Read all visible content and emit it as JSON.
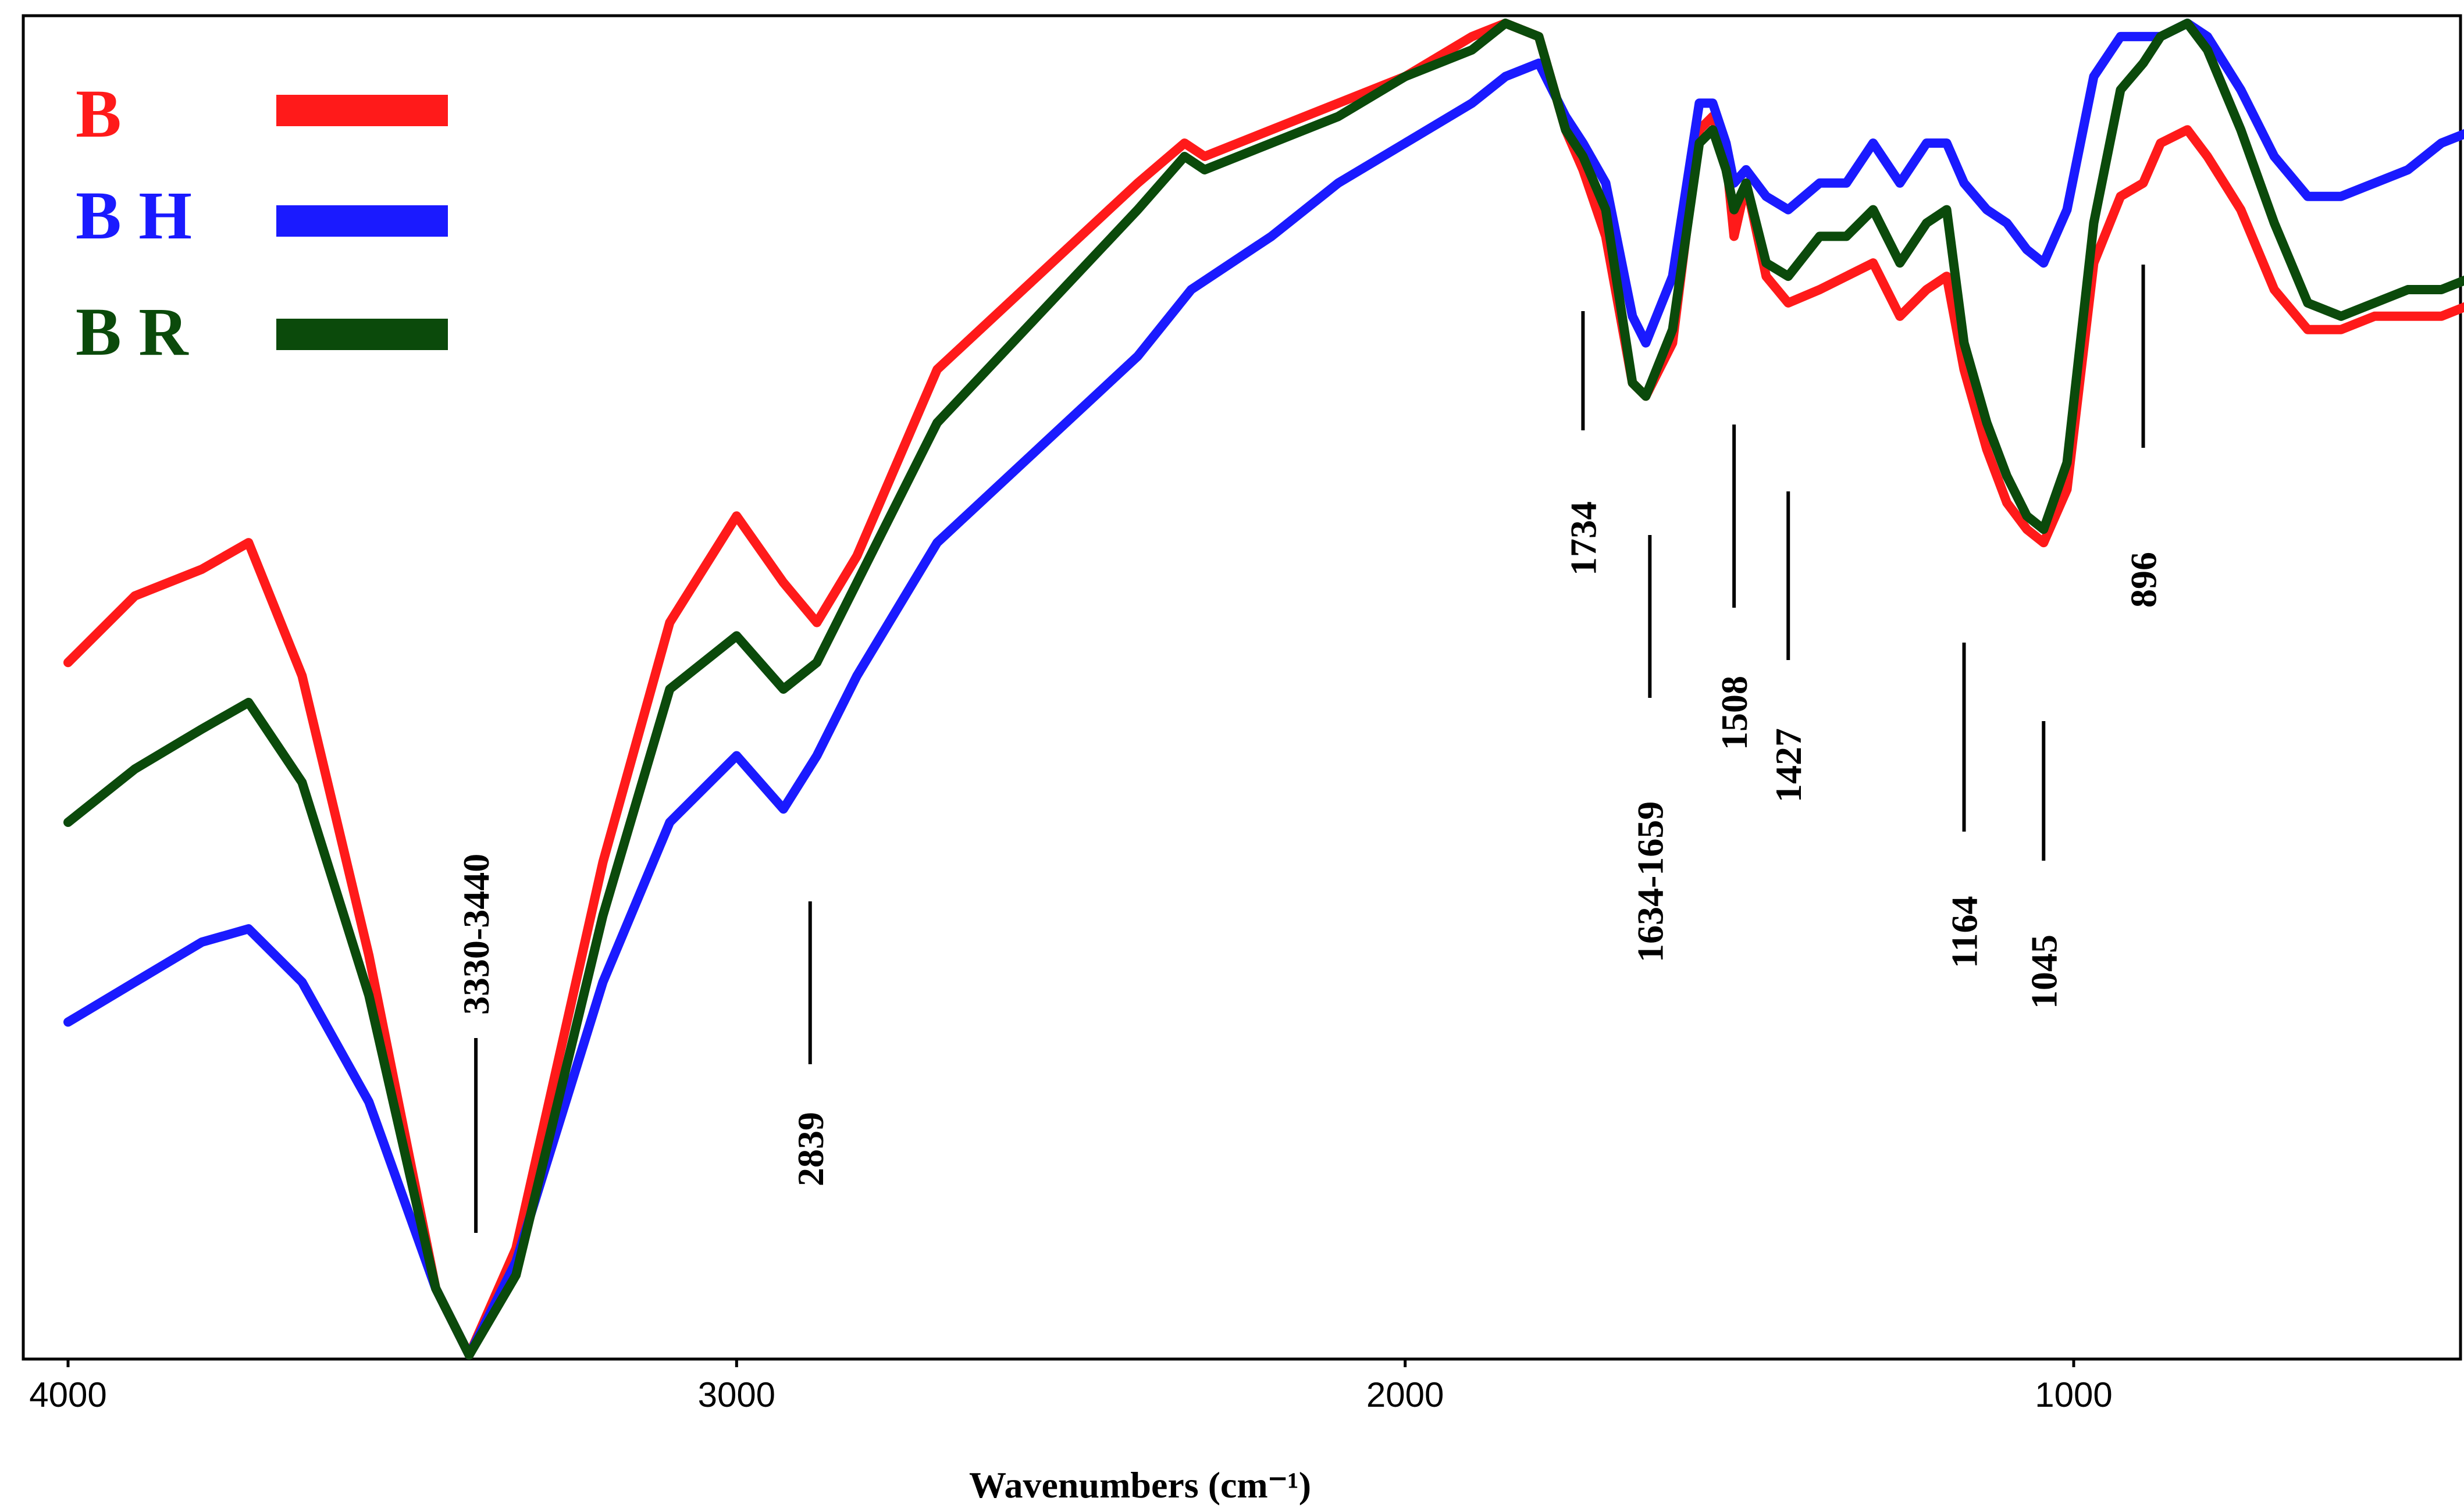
{
  "chart_data": {
    "type": "line",
    "xlabel": "Wavenumbers (cm⁻¹)",
    "ylabel": "",
    "xlim": [
      4000,
      370
    ],
    "x_reversed": true,
    "yaxis_ticks": false,
    "xticks": [
      4000,
      3000,
      2000,
      1000
    ],
    "xtick_labels": [
      "4000",
      "3000",
      "2000",
      "1000"
    ],
    "legend": {
      "placement": "top-left"
    },
    "series": [
      {
        "name": "B",
        "color": "#ff1a1a",
        "points": [
          [
            4000,
            52
          ],
          [
            3900,
            57
          ],
          [
            3800,
            59
          ],
          [
            3730,
            61
          ],
          [
            3650,
            51
          ],
          [
            3550,
            30
          ],
          [
            3450,
            5
          ],
          [
            3400,
            0
          ],
          [
            3330,
            8
          ],
          [
            3200,
            37
          ],
          [
            3100,
            55
          ],
          [
            3000,
            63
          ],
          [
            2930,
            58
          ],
          [
            2880,
            55
          ],
          [
            2820,
            60
          ],
          [
            2700,
            74
          ],
          [
            2550,
            81
          ],
          [
            2400,
            88
          ],
          [
            2330,
            91
          ],
          [
            2300,
            90
          ],
          [
            2200,
            92
          ],
          [
            2100,
            94
          ],
          [
            2000,
            96
          ],
          [
            1900,
            99
          ],
          [
            1850,
            100
          ],
          [
            1800,
            99
          ],
          [
            1760,
            92
          ],
          [
            1734,
            89
          ],
          [
            1700,
            84
          ],
          [
            1660,
            73
          ],
          [
            1640,
            72
          ],
          [
            1600,
            76
          ],
          [
            1560,
            92
          ],
          [
            1540,
            93
          ],
          [
            1520,
            90
          ],
          [
            1508,
            84
          ],
          [
            1490,
            88
          ],
          [
            1460,
            81
          ],
          [
            1427,
            79
          ],
          [
            1380,
            80
          ],
          [
            1340,
            81
          ],
          [
            1300,
            82
          ],
          [
            1260,
            78
          ],
          [
            1220,
            80
          ],
          [
            1190,
            81
          ],
          [
            1164,
            74
          ],
          [
            1130,
            68
          ],
          [
            1100,
            64
          ],
          [
            1070,
            62
          ],
          [
            1045,
            61
          ],
          [
            1010,
            65
          ],
          [
            970,
            82
          ],
          [
            930,
            87
          ],
          [
            896,
            88
          ],
          [
            870,
            91
          ],
          [
            830,
            92
          ],
          [
            800,
            90
          ],
          [
            750,
            86
          ],
          [
            700,
            80
          ],
          [
            650,
            77
          ],
          [
            600,
            77
          ],
          [
            550,
            78
          ],
          [
            500,
            78
          ],
          [
            450,
            78
          ],
          [
            400,
            79
          ],
          [
            370,
            79
          ]
        ]
      },
      {
        "name": "BH",
        "color": "#1a1aff",
        "points": [
          [
            4000,
            25
          ],
          [
            3900,
            28
          ],
          [
            3800,
            31
          ],
          [
            3730,
            32
          ],
          [
            3650,
            28
          ],
          [
            3550,
            19
          ],
          [
            3450,
            5
          ],
          [
            3400,
            0
          ],
          [
            3330,
            7
          ],
          [
            3200,
            28
          ],
          [
            3100,
            40
          ],
          [
            3000,
            45
          ],
          [
            2930,
            41
          ],
          [
            2880,
            45
          ],
          [
            2820,
            51
          ],
          [
            2700,
            61
          ],
          [
            2550,
            68
          ],
          [
            2400,
            75
          ],
          [
            2320,
            80
          ],
          [
            2200,
            84
          ],
          [
            2100,
            88
          ],
          [
            2000,
            91
          ],
          [
            1900,
            94
          ],
          [
            1850,
            96
          ],
          [
            1800,
            97
          ],
          [
            1760,
            93
          ],
          [
            1734,
            91
          ],
          [
            1700,
            88
          ],
          [
            1660,
            78
          ],
          [
            1640,
            76
          ],
          [
            1600,
            81
          ],
          [
            1560,
            94
          ],
          [
            1540,
            94
          ],
          [
            1520,
            91
          ],
          [
            1508,
            88
          ],
          [
            1490,
            89
          ],
          [
            1460,
            87
          ],
          [
            1427,
            86
          ],
          [
            1380,
            88
          ],
          [
            1340,
            88
          ],
          [
            1300,
            91
          ],
          [
            1260,
            88
          ],
          [
            1220,
            91
          ],
          [
            1190,
            91
          ],
          [
            1164,
            88
          ],
          [
            1130,
            86
          ],
          [
            1100,
            85
          ],
          [
            1070,
            83
          ],
          [
            1045,
            82
          ],
          [
            1010,
            86
          ],
          [
            970,
            96
          ],
          [
            930,
            99
          ],
          [
            896,
            99
          ],
          [
            870,
            99
          ],
          [
            830,
            100
          ],
          [
            800,
            99
          ],
          [
            750,
            95
          ],
          [
            700,
            90
          ],
          [
            650,
            87
          ],
          [
            600,
            87
          ],
          [
            550,
            88
          ],
          [
            500,
            89
          ],
          [
            450,
            91
          ],
          [
            400,
            92
          ],
          [
            370,
            93
          ]
        ]
      },
      {
        "name": "BR",
        "color": "#0b4a0b",
        "points": [
          [
            4000,
            40
          ],
          [
            3900,
            44
          ],
          [
            3800,
            47
          ],
          [
            3730,
            49
          ],
          [
            3650,
            43
          ],
          [
            3550,
            27
          ],
          [
            3450,
            5
          ],
          [
            3400,
            0
          ],
          [
            3330,
            6
          ],
          [
            3200,
            33
          ],
          [
            3100,
            50
          ],
          [
            3000,
            54
          ],
          [
            2930,
            50
          ],
          [
            2880,
            52
          ],
          [
            2820,
            58
          ],
          [
            2700,
            70
          ],
          [
            2550,
            78
          ],
          [
            2400,
            86
          ],
          [
            2330,
            90
          ],
          [
            2300,
            89
          ],
          [
            2200,
            91
          ],
          [
            2100,
            93
          ],
          [
            2000,
            96
          ],
          [
            1900,
            98
          ],
          [
            1850,
            100
          ],
          [
            1800,
            99
          ],
          [
            1760,
            92
          ],
          [
            1734,
            90
          ],
          [
            1700,
            86
          ],
          [
            1660,
            73
          ],
          [
            1640,
            72
          ],
          [
            1600,
            77
          ],
          [
            1560,
            91
          ],
          [
            1540,
            92
          ],
          [
            1520,
            89
          ],
          [
            1508,
            86
          ],
          [
            1490,
            88
          ],
          [
            1460,
            82
          ],
          [
            1427,
            81
          ],
          [
            1380,
            84
          ],
          [
            1340,
            84
          ],
          [
            1300,
            86
          ],
          [
            1260,
            82
          ],
          [
            1220,
            85
          ],
          [
            1190,
            86
          ],
          [
            1164,
            76
          ],
          [
            1130,
            70
          ],
          [
            1100,
            66
          ],
          [
            1070,
            63
          ],
          [
            1045,
            62
          ],
          [
            1010,
            67
          ],
          [
            970,
            85
          ],
          [
            930,
            95
          ],
          [
            896,
            97
          ],
          [
            870,
            99
          ],
          [
            830,
            100
          ],
          [
            800,
            98
          ],
          [
            750,
            92
          ],
          [
            700,
            85
          ],
          [
            650,
            79
          ],
          [
            600,
            78
          ],
          [
            550,
            79
          ],
          [
            500,
            80
          ],
          [
            450,
            80
          ],
          [
            400,
            81
          ],
          [
            370,
            81
          ]
        ]
      }
    ],
    "annotations": [
      {
        "text": "3330-3440",
        "x": 3390
      },
      {
        "text": "2839",
        "x": 2890
      },
      {
        "text": "1734",
        "x": 1734
      },
      {
        "text": "1634-1659",
        "x": 1634
      },
      {
        "text": "1508",
        "x": 1508
      },
      {
        "text": "1427",
        "x": 1427
      },
      {
        "text": "1164",
        "x": 1164
      },
      {
        "text": "1045",
        "x": 1045
      },
      {
        "text": "896",
        "x": 896
      }
    ]
  }
}
